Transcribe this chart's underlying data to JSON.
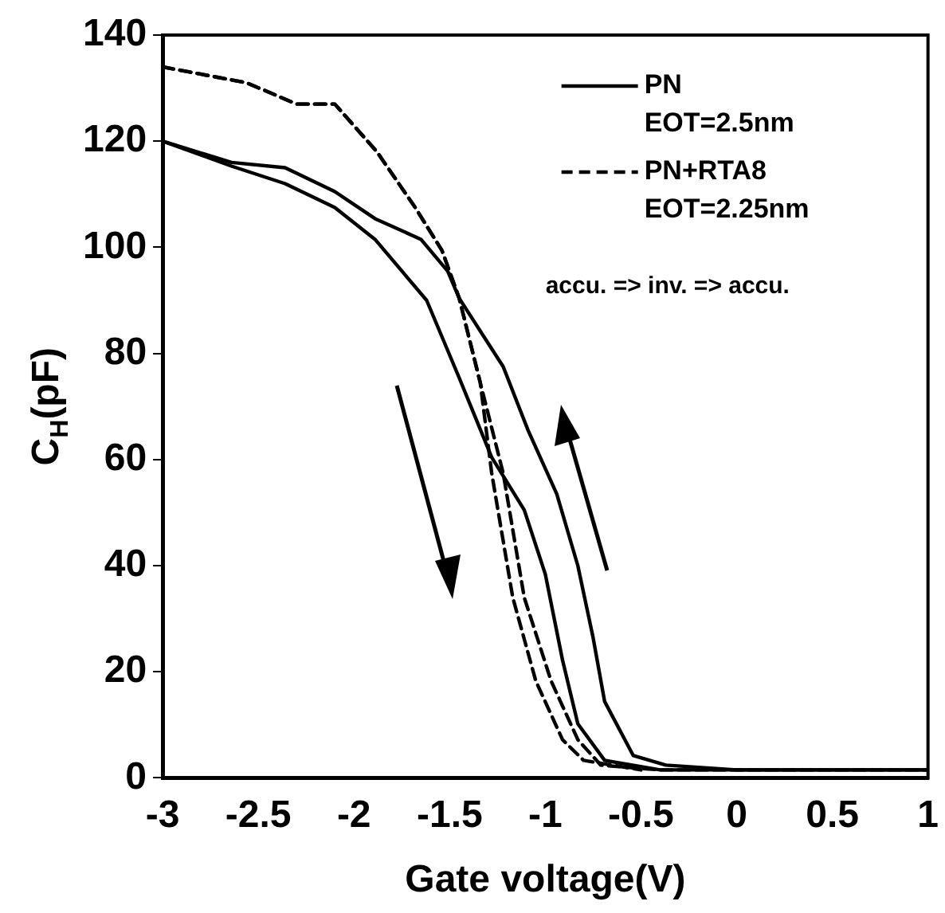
{
  "chart_data": {
    "type": "line",
    "xlabel": "Gate voltage(V)",
    "ylabel": "C$_{H}$(pF)",
    "xlim": [
      -3,
      1
    ],
    "xticks": [
      -3,
      -2.5,
      -2,
      -1.5,
      -1,
      -0.5,
      0,
      0.5,
      1
    ],
    "ylim": [
      0,
      140
    ],
    "yticks": [
      0,
      20,
      40,
      60,
      80,
      100,
      120,
      140
    ],
    "grid": false,
    "legend": "top right",
    "marker": "none",
    "annotations": [
      "accu. => inv. => accu."
    ],
    "series": [
      {
        "name": "PN\nEOT=2.5nm",
        "color": "#000000",
        "line_style": "solid",
        "x": [
          -3,
          -2.64,
          -2.36,
          -2.1,
          -1.89,
          -1.65,
          -1.51,
          -1.45,
          -1.22,
          -1.09,
          -0.94,
          -0.83,
          -0.75,
          -0.69,
          -0.54,
          -0.37,
          0,
          0.5,
          1
        ],
        "values": [
          120,
          116,
          115,
          110.5,
          105.4,
          101.5,
          95.5,
          90.4,
          77.5,
          65.5,
          53.5,
          40,
          26.4,
          14.4,
          4.2,
          2.4,
          1.5,
          1.5,
          1.5
        ]
      },
      {
        "color": "#000000",
        "line_style": "solid",
        "x": [
          -3,
          -2.64,
          -2.36,
          -2.1,
          -1.89,
          -1.62,
          -1.45,
          -1.28,
          -1.11,
          -1.0,
          -0.91,
          -0.83,
          -0.69,
          -0.4,
          0,
          0.5,
          1
        ],
        "values": [
          120,
          115.3,
          112,
          107.5,
          101.5,
          90,
          75.4,
          60.4,
          50.5,
          38.4,
          22.2,
          10.2,
          3.3,
          1.5,
          1.5,
          1.5,
          1.5
        ]
      },
      {
        "name": "PN+RTA8\nEOT=2.25nm",
        "color": "#000000",
        "line_style": "dashed",
        "x": [
          -3,
          -2.56,
          -2.3,
          -2.1,
          -1.88,
          -1.68,
          -1.54,
          -1.45,
          -1.34,
          -1.22,
          -1.11,
          -0.97,
          -0.83,
          -0.71,
          -0.4,
          0,
          0.5,
          1
        ],
        "values": [
          134,
          131,
          127,
          127,
          118,
          107.5,
          99.4,
          90.4,
          74.5,
          57.4,
          34,
          18.3,
          7.2,
          2.4,
          1.5,
          1.5,
          1.5,
          1.5
        ]
      },
      {
        "color": "#000000",
        "line_style": "dashed",
        "x": [
          -3,
          -2.56,
          -2.3,
          -2.1,
          -1.88,
          -1.68,
          -1.54,
          -1.45,
          -1.34,
          -1.28,
          -1.17,
          -1.05,
          -0.91,
          -0.8,
          -0.5
        ],
        "values": [
          134,
          131,
          127,
          127,
          118,
          107.5,
          99.4,
          90.4,
          74.5,
          57.4,
          34,
          18.3,
          7.2,
          3.3,
          1.5
        ]
      }
    ]
  }
}
